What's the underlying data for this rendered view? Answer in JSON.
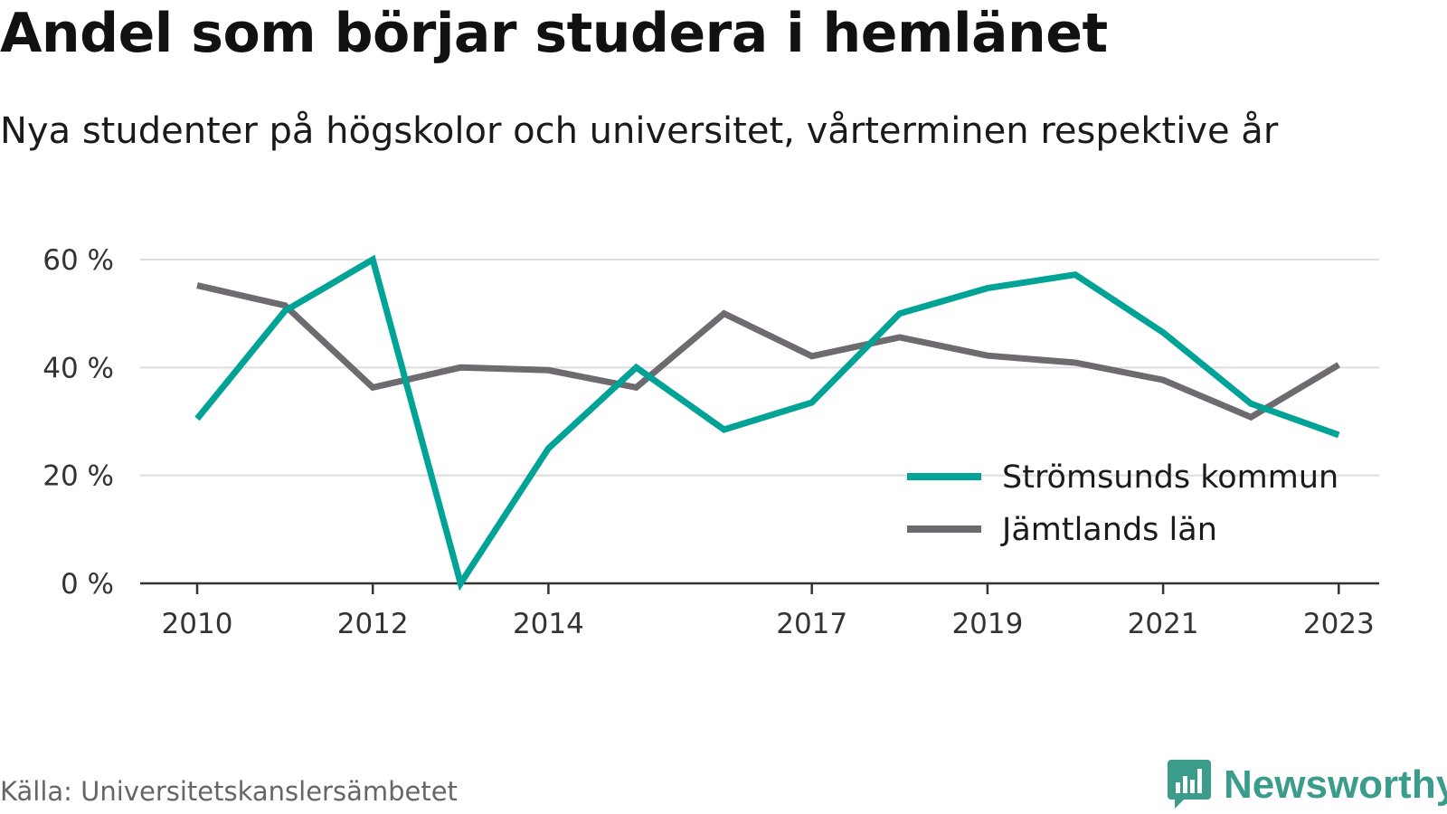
{
  "chart_data": {
    "type": "line",
    "title": "Andel som börjar studera i hemlänet",
    "subtitle": "Nya studenter på högskolor och universitet, vårterminen respektive år",
    "x": [
      2010,
      2011,
      2012,
      2013,
      2014,
      2015,
      2016,
      2017,
      2018,
      2019,
      2020,
      2021,
      2022,
      2023
    ],
    "x_tick_labels": [
      "2010",
      "2012",
      "2014",
      "2017",
      "2019",
      "2021",
      "2023"
    ],
    "y_ticks": [
      0,
      20,
      40,
      60
    ],
    "y_tick_labels": [
      "0 %",
      "20 %",
      "40 %",
      "60 %"
    ],
    "ylim": [
      0,
      60
    ],
    "grid": true,
    "legend_position": "bottom-right",
    "series": [
      {
        "name": "Strömsunds kommun",
        "color": "#00a396",
        "values": [
          30.5,
          50.5,
          60,
          0,
          25,
          40,
          28.5,
          33.5,
          50,
          54.7,
          57.2,
          46.5,
          33.3,
          27.5
        ]
      },
      {
        "name": "Jämtlands län",
        "color": "#6d6a70",
        "values": [
          55.2,
          51.5,
          36.3,
          40,
          39.5,
          36.3,
          50,
          42.1,
          45.6,
          42.2,
          40.9,
          37.7,
          30.8,
          40.5
        ]
      }
    ]
  },
  "source": "Källa: Universitetskanslersämbetet",
  "brand": {
    "name": "Newsworthy",
    "color": "#3c9c8c"
  }
}
